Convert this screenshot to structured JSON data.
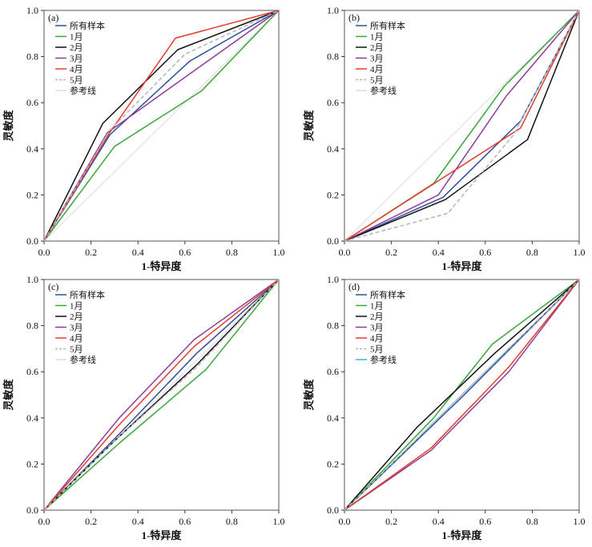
{
  "chart_data": [
    {
      "type": "line",
      "panel_label": "(a)",
      "xlabel": "1-特异度",
      "ylabel": "灵敏度",
      "xlim": [
        0,
        1
      ],
      "ylim": [
        0,
        1
      ],
      "ticks": [
        "0.0",
        "0.2",
        "0.4",
        "0.6",
        "0.8",
        "1.0"
      ],
      "series": [
        {
          "name": "所有样本",
          "color": "#2f4f9e",
          "dash": false,
          "x": [
            0,
            0.28,
            0.62,
            1
          ],
          "y": [
            0,
            0.46,
            0.78,
            1
          ]
        },
        {
          "name": "1月",
          "color": "#3aa83a",
          "dash": false,
          "x": [
            0,
            0.3,
            0.67,
            1
          ],
          "y": [
            0,
            0.41,
            0.65,
            1
          ]
        },
        {
          "name": "2月",
          "color": "#111111",
          "dash": false,
          "x": [
            0,
            0.25,
            0.57,
            1
          ],
          "y": [
            0,
            0.51,
            0.83,
            1
          ]
        },
        {
          "name": "3月",
          "color": "#8e3c9c",
          "dash": false,
          "x": [
            0,
            0.27,
            1
          ],
          "y": [
            0,
            0.47,
            1
          ]
        },
        {
          "name": "4月",
          "color": "#e23d2e",
          "dash": false,
          "x": [
            0,
            0.28,
            0.56,
            1
          ],
          "y": [
            0,
            0.47,
            0.88,
            1
          ]
        },
        {
          "name": "5月",
          "color": "#b5b5b5",
          "dash": true,
          "x": [
            0,
            0.28,
            0.6,
            1
          ],
          "y": [
            0,
            0.48,
            0.81,
            1
          ]
        },
        {
          "name": "参考线",
          "color": "#dcdcdc",
          "dash": false,
          "x": [
            0,
            1
          ],
          "y": [
            0,
            1
          ]
        }
      ]
    },
    {
      "type": "line",
      "panel_label": "(b)",
      "xlabel": "1-特异度",
      "ylabel": "灵敏度",
      "xlim": [
        0,
        1
      ],
      "ylim": [
        0,
        1
      ],
      "ticks": [
        "0.0",
        "0.2",
        "0.4",
        "0.6",
        "0.8",
        "1.0"
      ],
      "series": [
        {
          "name": "所有样本",
          "color": "#2f4f9e",
          "dash": false,
          "x": [
            0,
            0.42,
            0.75,
            1
          ],
          "y": [
            0,
            0.19,
            0.52,
            1
          ]
        },
        {
          "name": "1月",
          "color": "#3aa83a",
          "dash": false,
          "x": [
            0,
            0.38,
            0.68,
            1
          ],
          "y": [
            0,
            0.25,
            0.67,
            1
          ]
        },
        {
          "name": "2月",
          "color": "#111111",
          "dash": false,
          "x": [
            0,
            0.43,
            0.78,
            1
          ],
          "y": [
            0,
            0.18,
            0.44,
            1
          ]
        },
        {
          "name": "3月",
          "color": "#8e3c9c",
          "dash": false,
          "x": [
            0,
            0.4,
            0.69,
            1
          ],
          "y": [
            0,
            0.2,
            0.63,
            1
          ]
        },
        {
          "name": "4月",
          "color": "#e23d2e",
          "dash": false,
          "x": [
            0,
            0.75,
            1
          ],
          "y": [
            0,
            0.49,
            1
          ]
        },
        {
          "name": "5月",
          "color": "#b5b5b5",
          "dash": true,
          "x": [
            0,
            0.44,
            0.72,
            1
          ],
          "y": [
            0,
            0.12,
            0.46,
            1
          ]
        },
        {
          "name": "参考线",
          "color": "#dcdcdc",
          "dash": false,
          "x": [
            0,
            1
          ],
          "y": [
            0,
            1
          ]
        }
      ]
    },
    {
      "type": "line",
      "panel_label": "(c)",
      "xlabel": "1-特异度",
      "ylabel": "灵敏度",
      "xlim": [
        0,
        1
      ],
      "ylim": [
        0,
        1
      ],
      "ticks": [
        "0.0",
        "0.2",
        "0.4",
        "0.6",
        "0.8",
        "1.0"
      ],
      "series": [
        {
          "name": "所有样本",
          "color": "#2f4f9e",
          "dash": false,
          "x": [
            0,
            0.32,
            0.65,
            1
          ],
          "y": [
            0,
            0.33,
            0.68,
            1
          ]
        },
        {
          "name": "1月",
          "color": "#3aa83a",
          "dash": false,
          "x": [
            0,
            0.32,
            0.69,
            1
          ],
          "y": [
            0,
            0.29,
            0.61,
            1
          ]
        },
        {
          "name": "2月",
          "color": "#111111",
          "dash": false,
          "x": [
            0,
            0.3,
            0.65,
            1
          ],
          "y": [
            0,
            0.3,
            0.63,
            1
          ]
        },
        {
          "name": "3月",
          "color": "#8e3c9c",
          "dash": false,
          "x": [
            0,
            0.32,
            0.64,
            1
          ],
          "y": [
            0,
            0.4,
            0.74,
            1
          ]
        },
        {
          "name": "4月",
          "color": "#e23d2e",
          "dash": false,
          "x": [
            0,
            0.32,
            0.64,
            1
          ],
          "y": [
            0,
            0.37,
            0.71,
            1
          ]
        },
        {
          "name": "5月",
          "color": "#b5b5b5",
          "dash": true,
          "x": [
            0,
            0.3,
            0.65,
            1
          ],
          "y": [
            0,
            0.3,
            0.62,
            1
          ]
        },
        {
          "name": "参考线",
          "color": "#dcdcdc",
          "dash": false,
          "x": [
            0,
            1
          ],
          "y": [
            0,
            1
          ]
        }
      ]
    },
    {
      "type": "line",
      "panel_label": "(d)",
      "xlabel": "1-特异度",
      "ylabel": "灵敏度",
      "xlim": [
        0,
        1
      ],
      "ylim": [
        0,
        1
      ],
      "ticks": [
        "0.0",
        "0.2",
        "0.4",
        "0.6",
        "0.8",
        "1.0"
      ],
      "series": [
        {
          "name": "所有样本",
          "color": "#2f4f9e",
          "dash": false,
          "x": [
            0,
            0.5,
            1
          ],
          "y": [
            0,
            0.49,
            1
          ]
        },
        {
          "name": "1月",
          "color": "#3aa83a",
          "dash": false,
          "x": [
            0,
            0.38,
            0.63,
            1
          ],
          "y": [
            0,
            0.4,
            0.72,
            1
          ]
        },
        {
          "name": "2月",
          "color": "#111111",
          "dash": false,
          "x": [
            0,
            0.31,
            0.64,
            1
          ],
          "y": [
            0,
            0.36,
            0.68,
            1
          ]
        },
        {
          "name": "3月",
          "color": "#8e3c9c",
          "dash": false,
          "x": [
            0,
            0.37,
            0.7,
            1
          ],
          "y": [
            0,
            0.26,
            0.6,
            1
          ]
        },
        {
          "name": "4月",
          "color": "#e23d2e",
          "dash": false,
          "x": [
            0,
            0.37,
            0.7,
            1
          ],
          "y": [
            0,
            0.27,
            0.62,
            1
          ]
        },
        {
          "name": "5月",
          "color": "#b5b5b5",
          "dash": true,
          "x": [
            0,
            0.5,
            1
          ],
          "y": [
            0,
            0.5,
            1
          ]
        },
        {
          "name": "参考线",
          "color": "#3fb8c9",
          "dash": false,
          "x": [
            0,
            1
          ],
          "y": [
            0,
            1
          ]
        }
      ]
    }
  ]
}
